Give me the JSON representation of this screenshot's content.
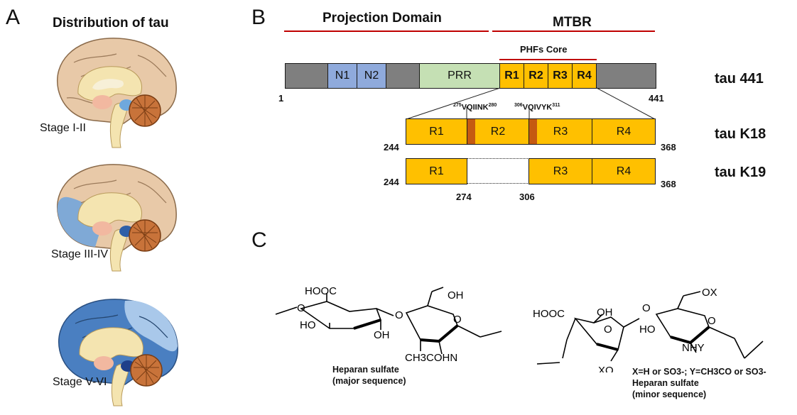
{
  "panelA": {
    "letter": "A",
    "title": "Distribution of tau",
    "stages": [
      "Stage I-II",
      "Stage III-IV",
      "Stage V-VI"
    ]
  },
  "panelB": {
    "letter": "B",
    "projection_domain": "Projection Domain",
    "mtbr": "MTBR",
    "phfs_core": "PHFs Core",
    "tau441": {
      "name": "tau 441",
      "segments": [
        "",
        "N1",
        "N2",
        "",
        "PRR",
        "R1",
        "R2",
        "R3",
        "R4",
        ""
      ],
      "start": "1",
      "end": "441"
    },
    "tauK18": {
      "name": "tau K18",
      "segments": [
        "R1",
        "R2",
        "R3",
        "R4"
      ],
      "start": "244",
      "end": "368",
      "motif1_num": "275",
      "motif1_seq": "VQIINK",
      "motif1_end": "280",
      "motif2_num": "306",
      "motif2_seq": "VQIVYK",
      "motif2_end": "311"
    },
    "tauK19": {
      "name": "tau K19",
      "segments": [
        "R1",
        "R3",
        "R4"
      ],
      "start": "244",
      "end": "368",
      "gap_start": "274",
      "gap_end": "306"
    }
  },
  "panelC": {
    "letter": "C",
    "left": {
      "groups": [
        "HOOC",
        "OH",
        "HO",
        "OH",
        "CH3COHN",
        "O",
        "O",
        "O"
      ],
      "caption1": "Heparan sulfate",
      "caption2": "(major sequence)"
    },
    "right": {
      "groups": [
        "OX",
        "HOOC",
        "OH",
        "HO",
        "NHY",
        "XO",
        "O",
        "O",
        "O"
      ],
      "note": "X=H or SO3-; Y=CH3CO or SO3-",
      "caption1": "Heparan sulfate",
      "caption2": "(minor sequence)"
    }
  },
  "colors": {
    "gray": "#7f7f7f",
    "blue": "#8faadc",
    "green": "#c5e0b4",
    "gold": "#ffc000",
    "motif": "#c55a11",
    "red_line": "#c00000"
  }
}
